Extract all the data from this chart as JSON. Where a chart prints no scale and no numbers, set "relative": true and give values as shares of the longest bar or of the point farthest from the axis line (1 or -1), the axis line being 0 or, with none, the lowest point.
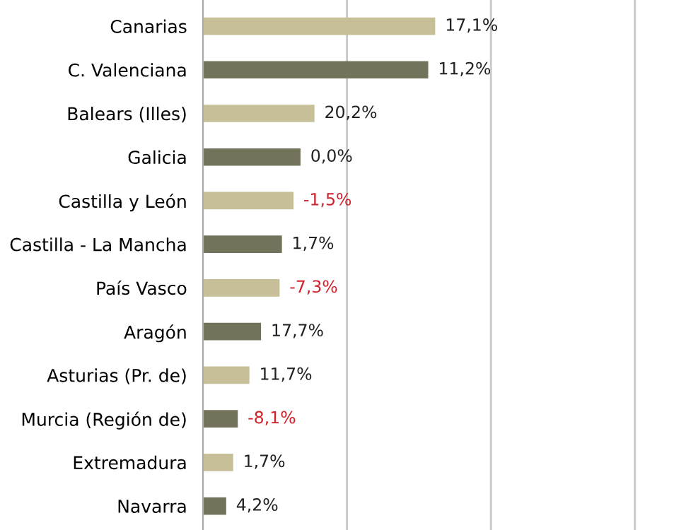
{
  "chart_data": {
    "type": "bar",
    "orientation": "horizontal",
    "relative": true,
    "categories": [
      "Canarias",
      "C. Valenciana",
      "Balears (Illes)",
      "Galicia",
      "Castilla y León",
      "Castilla - La Mancha",
      "País Vasco",
      "Aragón",
      "Asturias (Pr. de)",
      "Murcia (Región de)",
      "Extremadura",
      "Navarra"
    ],
    "values": [
      1,
      0.97,
      0.48,
      0.42,
      0.39,
      0.34,
      0.33,
      0.25,
      0.2,
      0.15,
      0.13,
      0.1
    ],
    "colors": [
      "#c6bf98",
      "#72735a",
      "#c6bf98",
      "#72735a",
      "#c6bf98",
      "#72735a",
      "#c6bf98",
      "#72735a",
      "#c6bf98",
      "#72735a",
      "#c6bf98",
      "#72735a"
    ],
    "annotations": [
      "17,1%",
      "11,2%",
      "20,2%",
      "0,0%",
      "-1,5%",
      "1,7%",
      "-7,3%",
      "17,7%",
      "11,7%",
      "-8,1%",
      "1,7%",
      "4,2%"
    ],
    "ref_lines": [
      {
        "axis": "x",
        "value": 0.62,
        "color": "#c8c8c8"
      },
      {
        "axis": "x",
        "value": 1.24,
        "color": "#c8c8c8"
      },
      {
        "axis": "x",
        "value": 1.86,
        "color": "#c8c8c8"
      }
    ],
    "tick_labels": "y",
    "legend": false
  }
}
